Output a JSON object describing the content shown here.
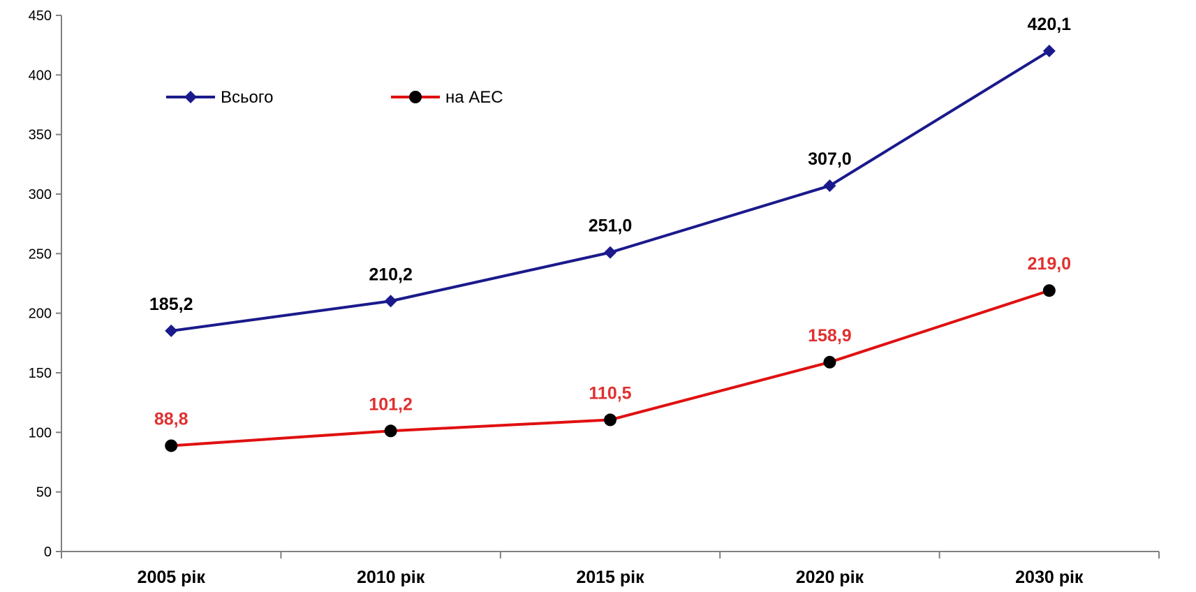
{
  "chart_data": {
    "type": "line",
    "categories": [
      "2005 рік",
      "2010 рік",
      "2015 рік",
      "2020 рік",
      "2030 рік"
    ],
    "series": [
      {
        "name": "Всього",
        "values": [
          185.2,
          210.2,
          251.0,
          307.0,
          420.1
        ],
        "data_labels": [
          "185,2",
          "210,2",
          "251,0",
          "307,0",
          "420,1"
        ],
        "color": "#1a1a8c",
        "label_color": "#000000",
        "marker": "diamond"
      },
      {
        "name": "на АЕС",
        "values": [
          88.8,
          101.2,
          110.5,
          158.9,
          219.0
        ],
        "data_labels": [
          "88,8",
          "101,2",
          "110,5",
          "158,9",
          "219,0"
        ],
        "color": "#e01010",
        "label_color": "#e03030",
        "marker": "circle"
      }
    ],
    "yticks": [
      "0",
      "50",
      "100",
      "150",
      "200",
      "250",
      "300",
      "350",
      "400",
      "450"
    ],
    "ylim": [
      0,
      450
    ],
    "title": "",
    "xlabel": "",
    "ylabel": "",
    "grid": false,
    "legend_position": "top-left"
  }
}
